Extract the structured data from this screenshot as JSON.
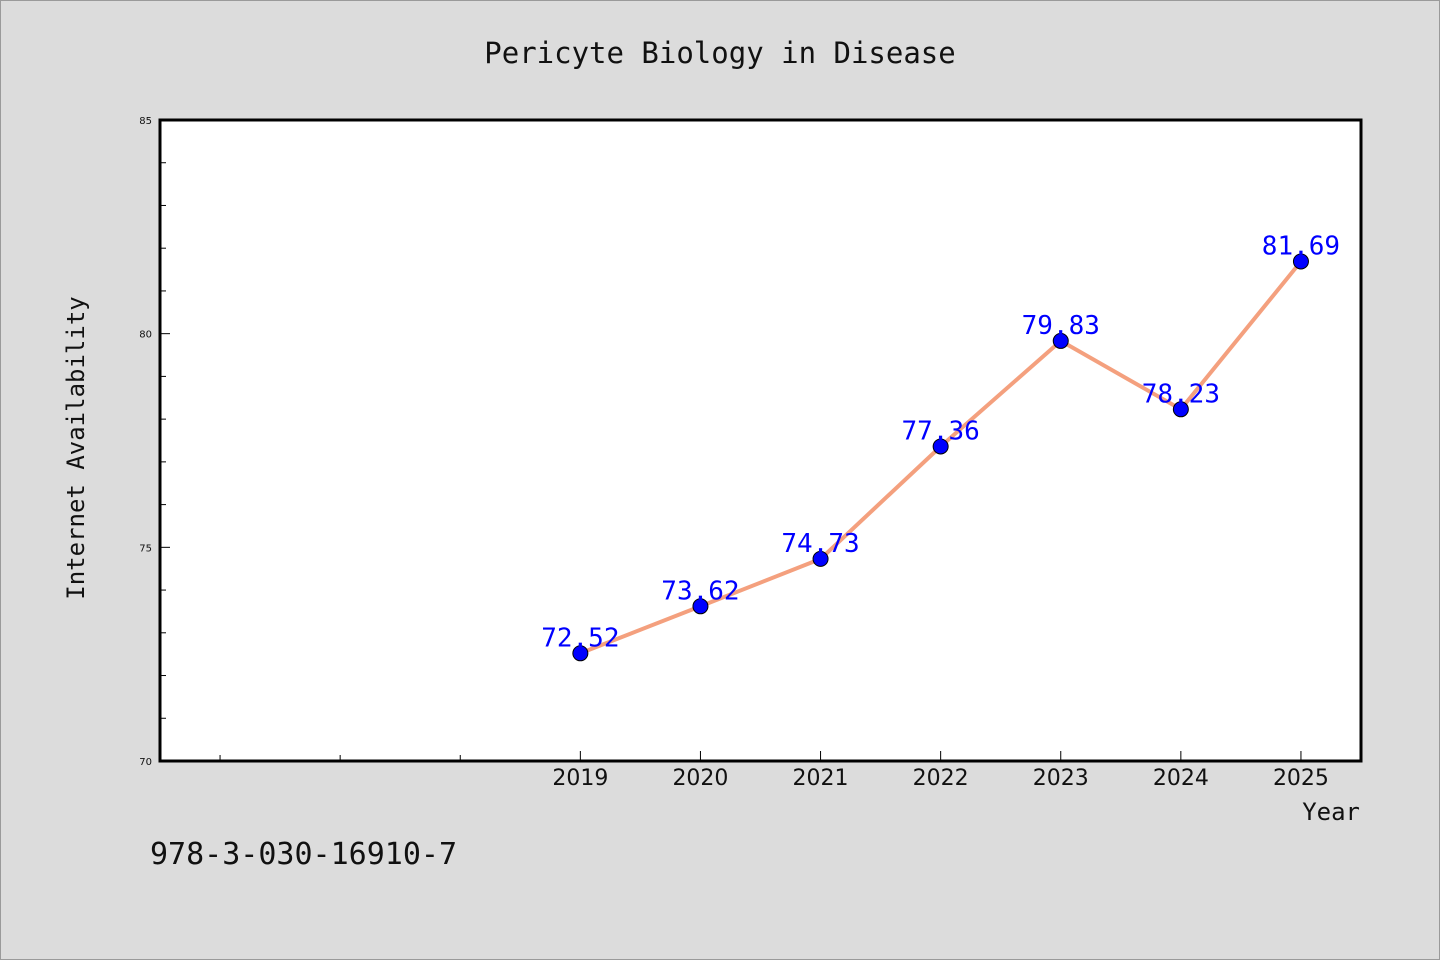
{
  "chart_data": {
    "type": "line",
    "title": "Pericyte Biology in Disease",
    "xlabel": "Year",
    "ylabel": "Internet Availability",
    "x": [
      2019,
      2020,
      2021,
      2022,
      2023,
      2024,
      2025
    ],
    "xlim": [
      2015.5,
      2025.5
    ],
    "ylim": [
      70,
      85
    ],
    "y_major_ticks": [
      70,
      75,
      80,
      85
    ],
    "y_minor_step": 1,
    "grid": false,
    "legend": "none",
    "series": [
      {
        "values": [
          72.52,
          73.62,
          74.73,
          77.36,
          79.83,
          78.23,
          81.69
        ]
      }
    ],
    "data_labels": [
      "72.52",
      "73.62",
      "74.73",
      "77.36",
      "79.83",
      "78.23",
      "81.69"
    ],
    "colors": {
      "line": "#f4a07e",
      "marker": "#0000ff",
      "label": "#0000ff",
      "background": "#dcdcdc",
      "plot": "#ffffff"
    }
  },
  "footer_text": "978-3-030-16910-7"
}
